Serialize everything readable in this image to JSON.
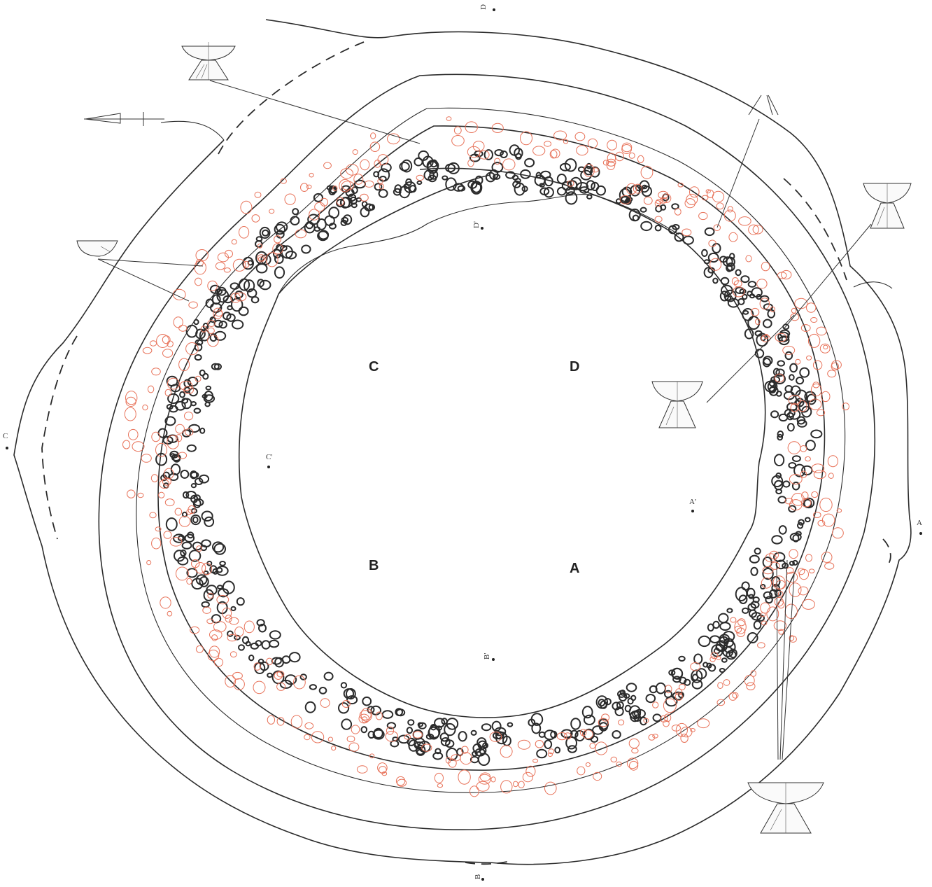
{
  "quadrants": [
    "A",
    "B",
    "C",
    "D"
  ],
  "section_points": {
    "A": "A",
    "A_prime": "A'",
    "B": "B",
    "B_prime": "B'",
    "C": "C",
    "C_prime": "C'",
    "D": "D",
    "D_prime": "D'"
  },
  "colors": {
    "line": "#2b2b2b",
    "stone_black": "#2b2b2b",
    "stone_red": "#e8735a",
    "background": "#ffffff"
  },
  "icons": [
    "north-arrow-icon",
    "pedestal-bowl-icon",
    "bowl-fragment-icon",
    "point-fragment-icon"
  ]
}
